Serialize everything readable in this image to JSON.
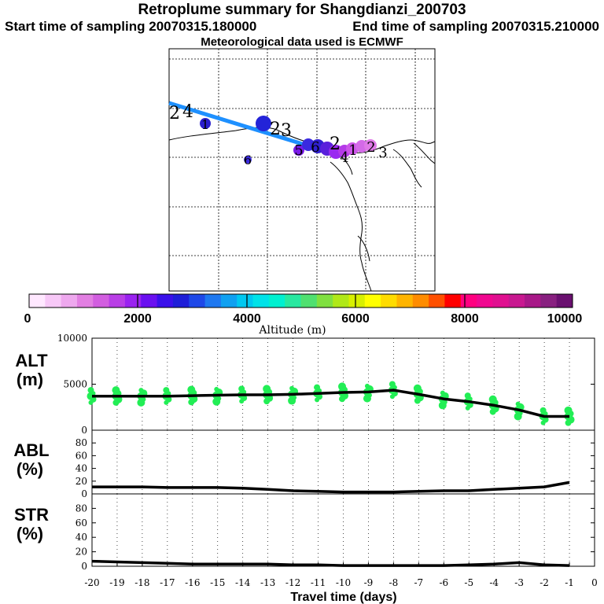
{
  "header": {
    "title": "Retroplume summary for Shangdianzi_200703",
    "start_label": "Start time of sampling 20070315.180000",
    "end_label": "End time of sampling 20070315.210000",
    "met_label": "Meteorological data used is ECMWF"
  },
  "colors": {
    "plume_line": "#1e90ff",
    "scatter_points": "#22ee55",
    "lines": "#000000"
  },
  "colorbar": {
    "label": "Altitude (m)",
    "ticks": [
      "0",
      "2000",
      "4000",
      "6000",
      "8000",
      "10000"
    ],
    "colors": [
      "#ffe8ff",
      "#f7c8f7",
      "#eea8ee",
      "#e27fe2",
      "#d25ee0",
      "#b93ee6",
      "#9a22f0",
      "#6a10f0",
      "#3a10ea",
      "#1e1ed8",
      "#1e48e8",
      "#1e78f0",
      "#10a0f0",
      "#00c8f0",
      "#00e2e8",
      "#00f0d0",
      "#28e8a0",
      "#50e070",
      "#80e040",
      "#b0e818",
      "#d8f000",
      "#ffff00",
      "#ffdc00",
      "#ffb400",
      "#ff8c00",
      "#ff5000",
      "#ff0000",
      "#ff0080",
      "#f00890",
      "#e01090",
      "#c81890",
      "#a81888",
      "#882080",
      "#6a1070"
    ]
  },
  "map": {
    "plume_numbers": [
      {
        "label": "2"
      },
      {
        "label": "4"
      },
      {
        "label": "1"
      },
      {
        "label": "2"
      },
      {
        "label": "3"
      },
      {
        "label": "6"
      },
      {
        "label": "5"
      },
      {
        "label": "6"
      },
      {
        "label": "2"
      },
      {
        "label": "4"
      },
      {
        "label": "1"
      },
      {
        "label": "2"
      },
      {
        "label": "3"
      }
    ]
  },
  "chart_data": [
    {
      "type": "line",
      "panel": "ALT",
      "ylabel_line1": "ALT",
      "ylabel_line2": "(m)",
      "ylim": [
        0,
        10000
      ],
      "yticks": [
        "0",
        "5000",
        "10000"
      ],
      "x": [
        -20,
        -19,
        -18,
        -17,
        -16,
        -15,
        -14,
        -13,
        -12,
        -11,
        -10,
        -9,
        -8,
        -7,
        -6,
        -5,
        -4,
        -3,
        -2,
        -1
      ],
      "values": [
        3700,
        3700,
        3700,
        3700,
        3750,
        3800,
        3850,
        3850,
        3900,
        4000,
        4100,
        4150,
        4350,
        3900,
        3400,
        3100,
        2700,
        2200,
        1500,
        1500
      ],
      "scatter_note": "green altitude spread points around each day"
    },
    {
      "type": "line",
      "panel": "ABL",
      "ylabel_line1": "ABL",
      "ylabel_line2": "(%)",
      "ylim": [
        0,
        100
      ],
      "yticks": [
        "0",
        "20",
        "40",
        "60",
        "80"
      ],
      "x": [
        -20,
        -19,
        -18,
        -17,
        -16,
        -15,
        -14,
        -13,
        -12,
        -11,
        -10,
        -9,
        -8,
        -7,
        -6,
        -5,
        -4,
        -3,
        -2,
        -1
      ],
      "values": [
        11,
        11,
        11,
        10,
        10,
        10,
        9,
        7,
        5,
        4,
        3,
        3,
        3,
        4,
        5,
        5,
        7,
        9,
        11,
        18
      ]
    },
    {
      "type": "line",
      "panel": "STR",
      "ylabel_line1": "STR",
      "ylabel_line2": "(%)",
      "ylim": [
        0,
        100
      ],
      "yticks": [
        "0",
        "20",
        "40",
        "60",
        "80"
      ],
      "x": [
        -20,
        -19,
        -18,
        -17,
        -16,
        -15,
        -14,
        -13,
        -12,
        -11,
        -10,
        -9,
        -8,
        -7,
        -6,
        -5,
        -4,
        -3,
        -2,
        -1
      ],
      "values": [
        7,
        6,
        5,
        4,
        3,
        3,
        3,
        3,
        2,
        2,
        1,
        1,
        1,
        1,
        1,
        2,
        3,
        5,
        2,
        1
      ],
      "xlabel": "Travel time (days)",
      "xtick_labels": [
        "-20",
        "-19",
        "-18",
        "-17",
        "-16",
        "-15",
        "-14",
        "-13",
        "-12",
        "-11",
        "-10",
        "-9",
        "-8",
        "-7",
        "-6",
        "-5",
        "-4",
        "-3",
        "-2",
        "-1",
        "0"
      ]
    }
  ]
}
